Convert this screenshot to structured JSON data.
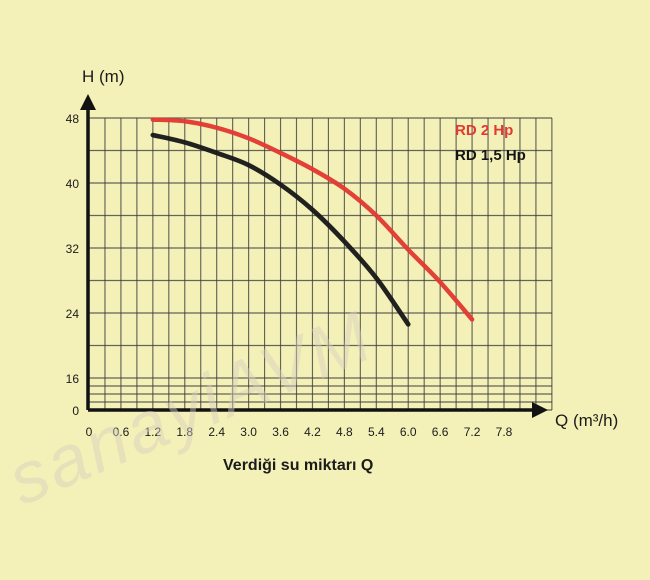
{
  "chart_data": {
    "type": "line",
    "xlabel": "Q (m³/h)",
    "ylabel": "H (m)",
    "x_axis_title": "Verdiği su miktarı Q",
    "xlim": [
      0,
      7.8
    ],
    "ylim": [
      0,
      48
    ],
    "x_ticks": [
      "0",
      "0.6",
      "1.2",
      "1.8",
      "2.4",
      "3.0",
      "3.6",
      "4.2",
      "4.8",
      "5.4",
      "6.0",
      "6.6",
      "7.2",
      "7.8"
    ],
    "y_ticks": [
      "0",
      "16",
      "24",
      "32",
      "40",
      "48"
    ],
    "grid": true,
    "legend_position": "top-right",
    "series": [
      {
        "name": "RD 2 Hp",
        "color": "#e23a33",
        "x": [
          1.2,
          1.8,
          2.4,
          3.0,
          3.6,
          4.2,
          4.8,
          5.4,
          6.0,
          6.6,
          7.2
        ],
        "y": [
          47.8,
          47.6,
          46.8,
          45.5,
          43.7,
          41.7,
          39.3,
          36.0,
          31.8,
          27.8,
          23.2
        ]
      },
      {
        "name": "RD 1,5 Hp",
        "color": "#1a1a1a",
        "x": [
          1.2,
          1.8,
          2.4,
          3.0,
          3.6,
          4.2,
          4.8,
          5.4,
          6.0
        ],
        "y": [
          45.9,
          45.0,
          43.7,
          42.2,
          39.8,
          36.7,
          32.8,
          28.3,
          22.6
        ]
      }
    ]
  },
  "watermark": "sanayiAVM"
}
